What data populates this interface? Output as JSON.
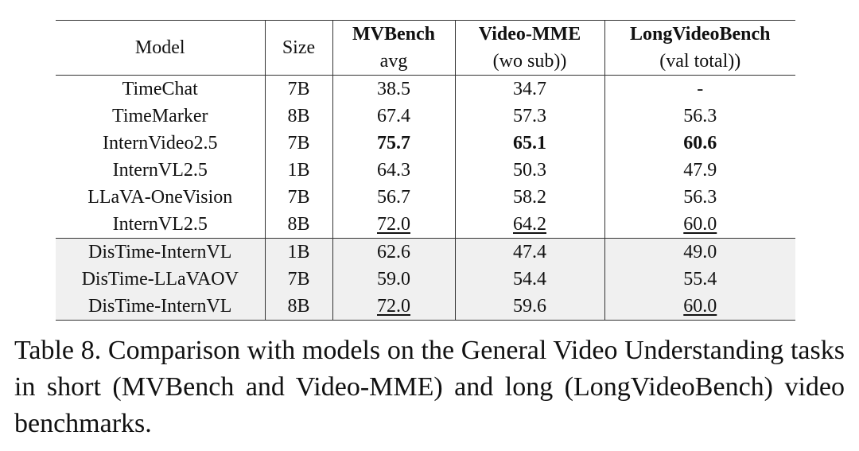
{
  "table": {
    "columns": [
      {
        "name": "Model"
      },
      {
        "name": "Size"
      },
      {
        "name": "MVBench",
        "sub": "avg"
      },
      {
        "name": "Video-MME",
        "sub": "(wo sub))"
      },
      {
        "name": "LongVideoBench",
        "sub": "(val total))"
      }
    ],
    "rows": [
      [
        "TimeChat",
        "7B",
        "38.5",
        "34.7",
        "-"
      ],
      [
        "TimeMarker",
        "8B",
        "67.4",
        "57.3",
        "56.3"
      ],
      [
        "InternVideo2.5",
        "7B",
        "75.7",
        "65.1",
        "60.6"
      ],
      [
        "InternVL2.5",
        "1B",
        "64.3",
        "50.3",
        "47.9"
      ],
      [
        "LLaVA-OneVision",
        "7B",
        "56.7",
        "58.2",
        "56.3"
      ],
      [
        "InternVL2.5",
        "8B",
        "72.0",
        "64.2",
        "60.0"
      ],
      [
        "DisTime-InternVL",
        "1B",
        "62.6",
        "47.4",
        "49.0"
      ],
      [
        "DisTime-LLaVAOV",
        "7B",
        "59.0",
        "54.4",
        "55.4"
      ],
      [
        "DisTime-InternVL",
        "8B",
        "72.0",
        "59.6",
        "60.0"
      ]
    ]
  },
  "caption": "Table 8. Comparison with models on the General Video Understanding tasks in short (MVBench and Video-MME) and long (LongVideoBench) video benchmarks."
}
